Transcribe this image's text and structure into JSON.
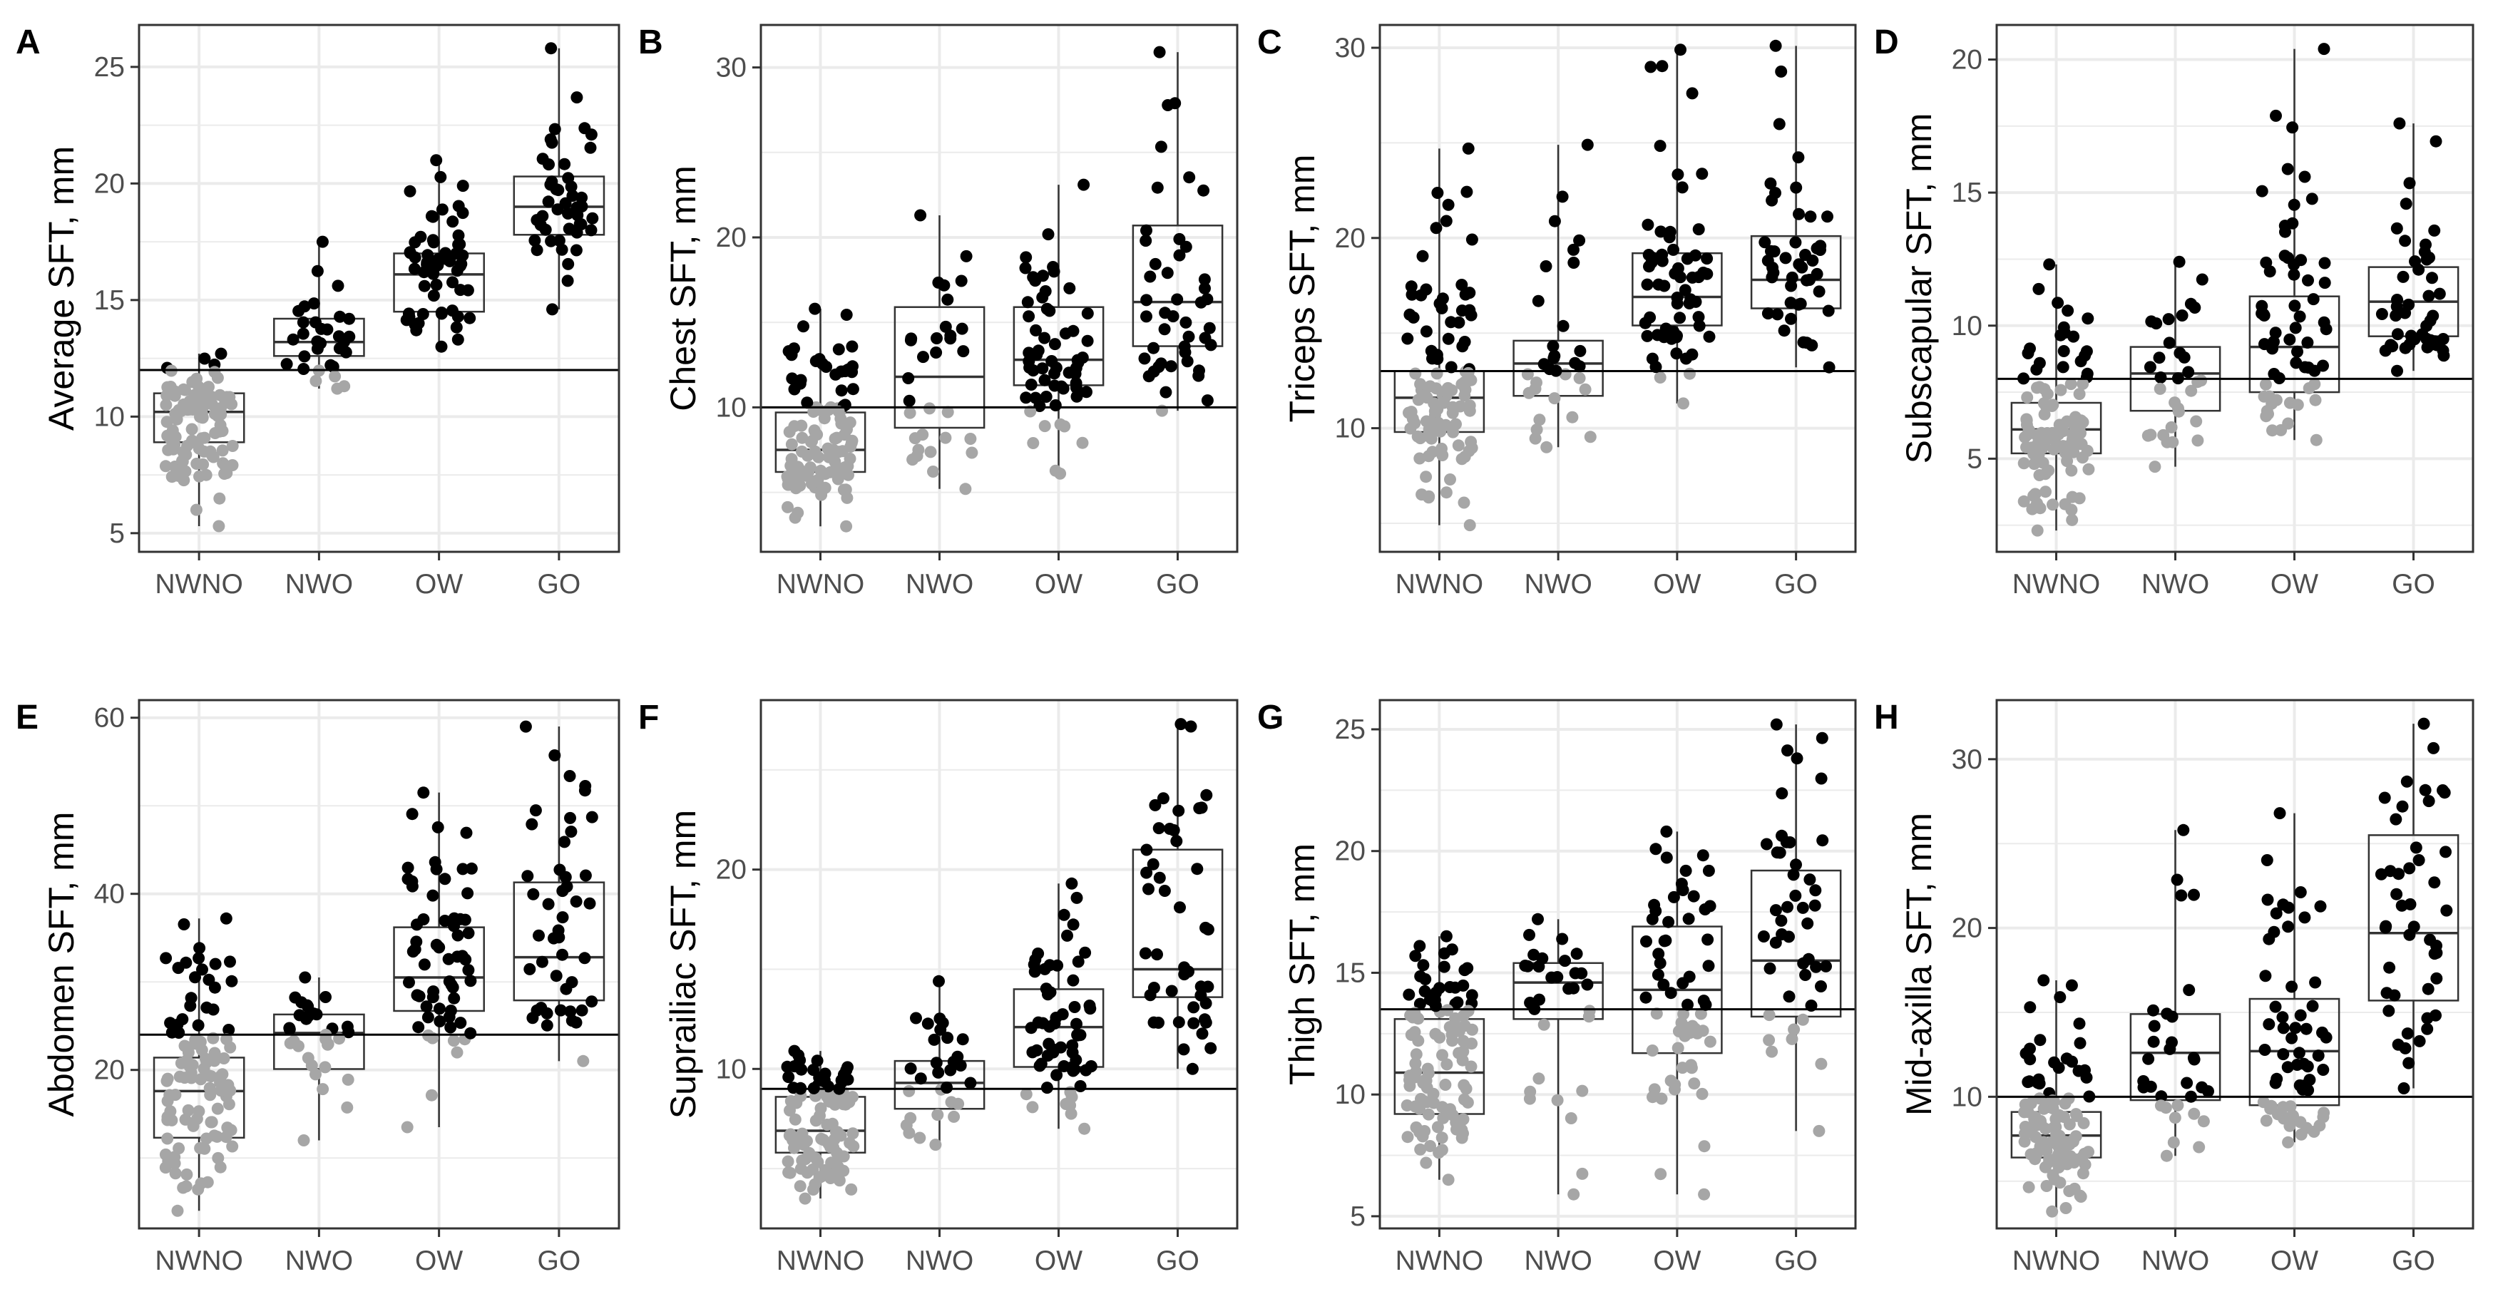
{
  "chart_data": [
    {
      "type": "box",
      "panel": "A",
      "ylabel": "Average SFT, mm",
      "categories": [
        "NWNO",
        "NWO",
        "OW",
        "GO"
      ],
      "ylim": [
        4.2,
        26.8
      ],
      "yticks": [
        5,
        10,
        15,
        20,
        25
      ],
      "threshold": 12,
      "boxes": [
        {
          "category": "NWNO",
          "q1": 8.9,
          "median": 10.2,
          "q3": 11.0,
          "min": 5.3,
          "max": 12.7
        },
        {
          "category": "NWO",
          "q1": 12.6,
          "median": 13.2,
          "q3": 14.2,
          "min": 11.2,
          "max": 17.5
        },
        {
          "category": "OW",
          "q1": 14.5,
          "median": 16.1,
          "q3": 17.0,
          "min": 13.0,
          "max": 21.0
        },
        {
          "category": "GO",
          "q1": 17.8,
          "median": 19.0,
          "q3": 20.3,
          "min": 14.6,
          "max": 25.8
        }
      ],
      "points": {
        "NWNO": 110,
        "NWO": 32,
        "OW": 62,
        "GO": 45
      }
    },
    {
      "type": "box",
      "panel": "B",
      "ylabel": "Chest SFT, mm",
      "categories": [
        "NWNO",
        "NWO",
        "OW",
        "GO"
      ],
      "ylim": [
        1.5,
        32.5
      ],
      "yticks": [
        10,
        20,
        30
      ],
      "threshold": 10,
      "boxes": [
        {
          "category": "NWNO",
          "q1": 6.2,
          "median": 7.5,
          "q3": 9.7,
          "min": 3.0,
          "max": 15.8
        },
        {
          "category": "NWO",
          "q1": 8.8,
          "median": 11.8,
          "q3": 15.9,
          "min": 5.2,
          "max": 21.3
        },
        {
          "category": "OW",
          "q1": 11.3,
          "median": 12.8,
          "q3": 15.9,
          "min": 6.1,
          "max": 23.1
        },
        {
          "category": "GO",
          "q1": 13.6,
          "median": 16.2,
          "q3": 20.7,
          "min": 9.8,
          "max": 30.9
        }
      ],
      "points": {
        "NWNO": 110,
        "NWO": 32,
        "OW": 62,
        "GO": 45
      }
    },
    {
      "type": "box",
      "panel": "C",
      "ylabel": "Triceps SFT, mm",
      "categories": [
        "NWNO",
        "NWO",
        "OW",
        "GO"
      ],
      "ylim": [
        3.5,
        31.2
      ],
      "yticks": [
        10,
        20,
        30
      ],
      "threshold": 13,
      "boxes": [
        {
          "category": "NWNO",
          "q1": 9.8,
          "median": 11.6,
          "q3": 13.0,
          "min": 4.9,
          "max": 24.7
        },
        {
          "category": "NWO",
          "q1": 11.7,
          "median": 13.4,
          "q3": 14.6,
          "min": 9.0,
          "max": 24.9
        },
        {
          "category": "OW",
          "q1": 15.4,
          "median": 16.9,
          "q3": 19.2,
          "min": 11.3,
          "max": 29.9
        },
        {
          "category": "GO",
          "q1": 16.3,
          "median": 17.8,
          "q3": 20.1,
          "min": 13.2,
          "max": 30.1
        }
      ],
      "points": {
        "NWNO": 110,
        "NWO": 32,
        "OW": 62,
        "GO": 45
      }
    },
    {
      "type": "box",
      "panel": "D",
      "ylabel": "Subscapular SFT, mm",
      "categories": [
        "NWNO",
        "NWO",
        "OW",
        "GO"
      ],
      "ylim": [
        1.5,
        21.3
      ],
      "yticks": [
        5,
        10,
        15,
        20
      ],
      "threshold": 8,
      "boxes": [
        {
          "category": "NWNO",
          "q1": 5.2,
          "median": 6.1,
          "q3": 7.1,
          "min": 2.3,
          "max": 12.3
        },
        {
          "category": "NWO",
          "q1": 6.8,
          "median": 8.2,
          "q3": 9.2,
          "min": 4.7,
          "max": 12.4
        },
        {
          "category": "OW",
          "q1": 7.5,
          "median": 9.2,
          "q3": 11.1,
          "min": 5.7,
          "max": 20.4
        },
        {
          "category": "GO",
          "q1": 9.6,
          "median": 10.9,
          "q3": 12.2,
          "min": 8.3,
          "max": 17.6
        }
      ],
      "points": {
        "NWNO": 110,
        "NWO": 32,
        "OW": 62,
        "GO": 45
      }
    },
    {
      "type": "box",
      "panel": "E",
      "ylabel": "Abdomen SFT, mm",
      "categories": [
        "NWNO",
        "NWO",
        "OW",
        "GO"
      ],
      "ylim": [
        2.0,
        62.0
      ],
      "yticks": [
        20,
        40,
        60
      ],
      "threshold": 24,
      "boxes": [
        {
          "category": "NWNO",
          "q1": 12.3,
          "median": 17.6,
          "q3": 21.4,
          "min": 4.0,
          "max": 37.2
        },
        {
          "category": "NWO",
          "q1": 20.1,
          "median": 24.2,
          "q3": 26.3,
          "min": 12.0,
          "max": 30.5
        },
        {
          "category": "OW",
          "q1": 26.7,
          "median": 30.5,
          "q3": 36.2,
          "min": 13.5,
          "max": 51.5
        },
        {
          "category": "GO",
          "q1": 27.9,
          "median": 32.8,
          "q3": 41.3,
          "min": 21.0,
          "max": 59.0
        }
      ],
      "points": {
        "NWNO": 110,
        "NWO": 32,
        "OW": 62,
        "GO": 45
      }
    },
    {
      "type": "box",
      "panel": "F",
      "ylabel": "Suprailiac SFT, mm",
      "categories": [
        "NWNO",
        "NWO",
        "OW",
        "GO"
      ],
      "ylim": [
        2.0,
        28.5
      ],
      "yticks": [
        10,
        20
      ],
      "threshold": 9,
      "boxes": [
        {
          "category": "NWNO",
          "q1": 5.8,
          "median": 6.9,
          "q3": 8.6,
          "min": 3.5,
          "max": 10.9
        },
        {
          "category": "NWO",
          "q1": 8.0,
          "median": 9.3,
          "q3": 10.4,
          "min": 6.2,
          "max": 14.4
        },
        {
          "category": "OW",
          "q1": 10.1,
          "median": 12.1,
          "q3": 14.0,
          "min": 7.0,
          "max": 19.3
        },
        {
          "category": "GO",
          "q1": 13.6,
          "median": 15.0,
          "q3": 21.0,
          "min": 10.0,
          "max": 27.3
        }
      ],
      "points": {
        "NWNO": 110,
        "NWO": 32,
        "OW": 62,
        "GO": 45
      }
    },
    {
      "type": "box",
      "panel": "G",
      "ylabel": "Thigh SFT, mm",
      "categories": [
        "NWNO",
        "NWO",
        "OW",
        "GO"
      ],
      "ylim": [
        4.5,
        26.2
      ],
      "yticks": [
        5,
        10,
        15,
        20,
        25
      ],
      "threshold": 13.5,
      "boxes": [
        {
          "category": "NWNO",
          "q1": 9.2,
          "median": 10.9,
          "q3": 13.1,
          "min": 6.5,
          "max": 16.5
        },
        {
          "category": "NWO",
          "q1": 13.1,
          "median": 14.6,
          "q3": 15.4,
          "min": 5.9,
          "max": 17.2
        },
        {
          "category": "OW",
          "q1": 11.7,
          "median": 14.3,
          "q3": 16.9,
          "min": 5.9,
          "max": 20.8
        },
        {
          "category": "GO",
          "q1": 13.2,
          "median": 15.5,
          "q3": 19.2,
          "min": 8.5,
          "max": 25.2
        }
      ],
      "points": {
        "NWNO": 110,
        "NWO": 32,
        "OW": 62,
        "GO": 45
      }
    },
    {
      "type": "box",
      "panel": "H",
      "ylabel": "Mid-axilla SFT, mm",
      "categories": [
        "NWNO",
        "NWO",
        "OW",
        "GO"
      ],
      "ylim": [
        2.2,
        33.5
      ],
      "yticks": [
        10,
        20,
        30
      ],
      "threshold": 10,
      "boxes": [
        {
          "category": "NWNO",
          "q1": 6.4,
          "median": 7.7,
          "q3": 9.1,
          "min": 3.2,
          "max": 16.9
        },
        {
          "category": "NWO",
          "q1": 9.8,
          "median": 12.6,
          "q3": 14.9,
          "min": 6.5,
          "max": 25.8
        },
        {
          "category": "OW",
          "q1": 9.5,
          "median": 12.7,
          "q3": 15.8,
          "min": 7.3,
          "max": 26.8
        },
        {
          "category": "GO",
          "q1": 15.7,
          "median": 19.7,
          "q3": 25.5,
          "min": 10.5,
          "max": 32.1
        }
      ],
      "points": {
        "NWNO": 110,
        "NWO": 32,
        "OW": 62,
        "GO": 45
      }
    }
  ],
  "colors": {
    "below_threshold_point": "#a6a6a6",
    "above_threshold_point": "#000000",
    "grid": "#ebebeb",
    "axis_text": "#4d4d4d"
  }
}
